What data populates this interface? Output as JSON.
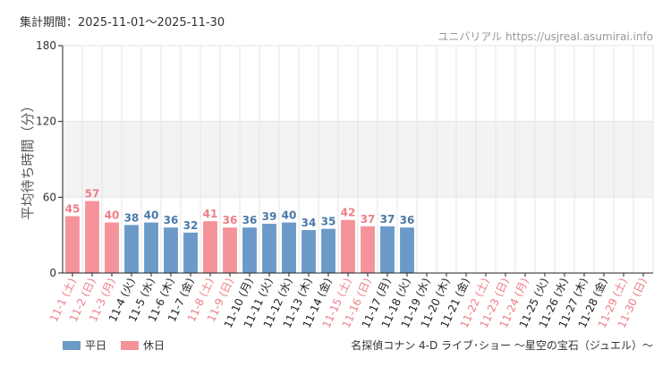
{
  "header": {
    "period_label": "集計期間：2025-11-01～2025-11-30",
    "site_watermark": "ユニバリアル https://usjreal.asumirai.info"
  },
  "legend": {
    "weekday_label": "平日",
    "holiday_label": "休日"
  },
  "footer": {
    "attraction_name": "名探偵コナン 4-D ライブ･ショー ～星空の宝石（ジュエル）～"
  },
  "colors": {
    "weekday": "#6b9ac8",
    "holiday": "#f4939a",
    "weekday_label_text": "#4a78a8",
    "holiday_label_text": "#ee7d86",
    "band": "#f3f3f3",
    "grid": "#e6e6e6",
    "axis": "#222222"
  },
  "chart_data": {
    "type": "bar",
    "title": "",
    "xlabel": "",
    "ylabel": "平均待ち時間（分）",
    "ylim": [
      0,
      180
    ],
    "yticks": [
      0,
      60,
      120,
      180
    ],
    "shaded_band": [
      60,
      120
    ],
    "categories": [
      "11-1 (土)",
      "11-2 (日)",
      "11-3 (月)",
      "11-4 (火)",
      "11-5 (水)",
      "11-6 (木)",
      "11-7 (金)",
      "11-8 (土)",
      "11-9 (日)",
      "11-10 (月)",
      "11-11 (火)",
      "11-12 (水)",
      "11-13 (木)",
      "11-14 (金)",
      "11-15 (土)",
      "11-16 (日)",
      "11-17 (月)",
      "11-18 (火)",
      "11-19 (水)",
      "11-20 (木)",
      "11-21 (金)",
      "11-22 (土)",
      "11-23 (日)",
      "11-24 (月)",
      "11-25 (火)",
      "11-26 (水)",
      "11-27 (木)",
      "11-28 (金)",
      "11-29 (土)",
      "11-30 (日)"
    ],
    "holiday": [
      true,
      true,
      true,
      false,
      false,
      false,
      false,
      true,
      true,
      false,
      false,
      false,
      false,
      false,
      true,
      true,
      false,
      false,
      false,
      false,
      false,
      true,
      true,
      true,
      false,
      false,
      false,
      false,
      true,
      true
    ],
    "values": [
      45,
      57,
      40,
      38,
      40,
      36,
      32,
      41,
      36,
      36,
      39,
      40,
      34,
      35,
      42,
      37,
      37,
      36,
      null,
      null,
      null,
      null,
      null,
      null,
      null,
      null,
      null,
      null,
      null,
      null
    ]
  }
}
